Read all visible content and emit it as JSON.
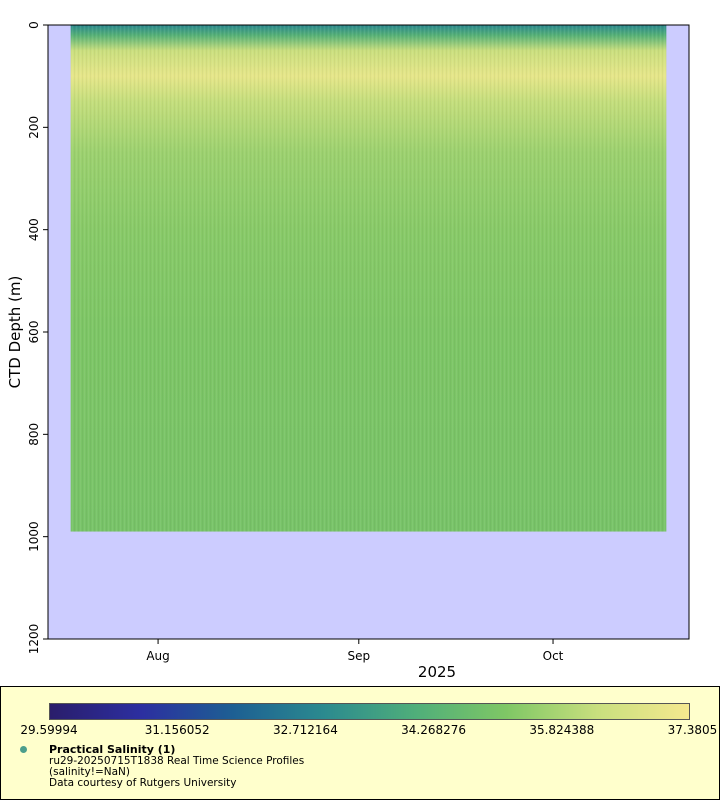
{
  "chart_data": {
    "type": "heatmap",
    "title": "",
    "xlabel": "2025",
    "ylabel": "CTD Depth (m)",
    "x_ticks": [
      "Aug",
      "Sep",
      "Oct"
    ],
    "x_tick_days": [
      17,
      48,
      78
    ],
    "x_range_days": [
      0,
      99
    ],
    "data_start_day": 3.5,
    "data_end_day": 95.5,
    "y_ticks": [
      0,
      200,
      400,
      600,
      800,
      1000,
      1200
    ],
    "ylim": [
      1200,
      0
    ],
    "y_inverted": true,
    "max_profile_depth": 990,
    "colorbar": {
      "min": 29.59994,
      "max": 37.3805,
      "tick_labels": [
        "29.59994",
        "31.156052",
        "32.712164",
        "34.268276",
        "35.824388",
        "37.3805"
      ],
      "colors": [
        "#2a1d6b",
        "#2c2fa0",
        "#1d5f93",
        "#2b8a8f",
        "#4fae7a",
        "#7fc765",
        "#c9df7e",
        "#f5e98f"
      ]
    },
    "salinity_profile": [
      {
        "depth": 0,
        "value": 32.9
      },
      {
        "depth": 20,
        "value": 34.2
      },
      {
        "depth": 50,
        "value": 36.3
      },
      {
        "depth": 100,
        "value": 37.0
      },
      {
        "depth": 150,
        "value": 36.2
      },
      {
        "depth": 250,
        "value": 35.6
      },
      {
        "depth": 400,
        "value": 35.3
      },
      {
        "depth": 600,
        "value": 35.1
      },
      {
        "depth": 990,
        "value": 35.0
      }
    ],
    "background_color": "#ccccff"
  },
  "legend": {
    "variable": "Practical Salinity (1)",
    "dataset": "ru29-20250715T1838 Real Time Science Profiles",
    "constraint": "(salinity!=NaN)",
    "credit": "Data courtesy of Rutgers University",
    "marker_color": "#4c9f8c"
  }
}
